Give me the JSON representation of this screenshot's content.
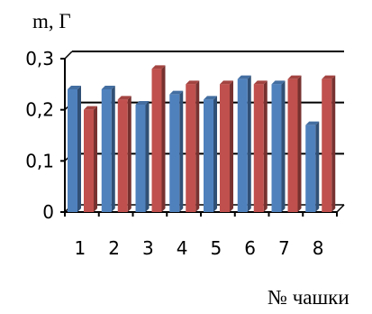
{
  "chart_data": {
    "type": "bar",
    "title": "",
    "ylabel": "m, Г",
    "xlabel": "№ чашки",
    "categories": [
      "1",
      "2",
      "3",
      "4",
      "5",
      "6",
      "7",
      "8"
    ],
    "ytick_labels": [
      "0",
      "0,1",
      "0,2",
      "0,3"
    ],
    "ylim": [
      0,
      0.3
    ],
    "grid": true,
    "legend": "none",
    "series": [
      {
        "values": [
          0.24,
          0.24,
          0.21,
          0.23,
          0.22,
          0.26,
          0.25,
          0.17
        ],
        "color": "#4f81bd"
      },
      {
        "values": [
          0.2,
          0.22,
          0.28,
          0.25,
          0.25,
          0.25,
          0.26,
          0.26
        ],
        "color": "#c0504d"
      }
    ]
  }
}
